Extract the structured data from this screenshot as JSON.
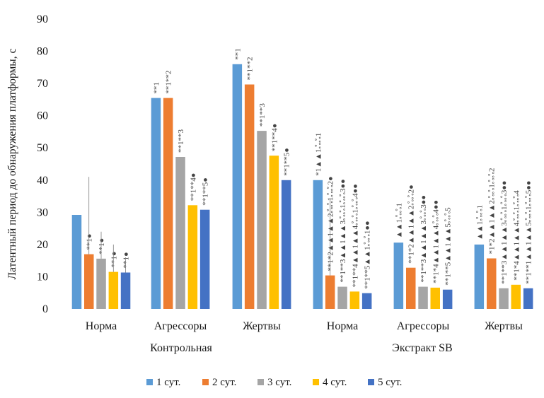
{
  "chart_data": {
    "type": "bar",
    "ylabel": "Латентный период до обнаружения платформы, с",
    "ylim": [
      0,
      90
    ],
    "yticks": [
      0,
      10,
      20,
      30,
      40,
      50,
      60,
      70,
      80,
      90
    ],
    "grid": false,
    "legend_position": "bottom",
    "groups": [
      "Контрольная",
      "Экстракт SB"
    ],
    "categories": [
      "Норма",
      "Агрессоры",
      "Жертвы",
      "Норма",
      "Агрессоры",
      "Жертвы"
    ],
    "category_group": [
      0,
      0,
      0,
      1,
      1,
      1
    ],
    "series": [
      {
        "name": "1 сут.",
        "color": "#5b9bd5",
        "values": [
          29.2,
          65.5,
          76.0,
          40.0,
          20.6,
          20.0
        ]
      },
      {
        "name": "2 сут.",
        "color": "#ed7d31",
        "values": [
          17.0,
          65.5,
          69.7,
          10.4,
          12.8,
          15.7
        ]
      },
      {
        "name": "3 сут.",
        "color": "#a5a5a5",
        "values": [
          15.6,
          47.2,
          55.3,
          6.9,
          6.9,
          6.4
        ]
      },
      {
        "name": "4 сут.",
        "color": "#ffc000",
        "values": [
          11.5,
          32.2,
          47.6,
          5.4,
          6.6,
          7.5
        ]
      },
      {
        "name": "5 сут.",
        "color": "#4472c4",
        "values": [
          11.3,
          30.8,
          40.0,
          4.9,
          6.0,
          6.4
        ]
      }
    ],
    "annotations": [
      [
        null,
        "**1●",
        "**1●",
        "**1●",
        "**1●"
      ],
      [
        "**1",
        "**1**2",
        "**1**3",
        "**1**4●",
        "**1**5●"
      ],
      [
        "**1",
        "**1**2",
        "**1**3",
        "**1**4●",
        "**1**5●"
      ],
      [
        "*1▲▲1ஃஃ1",
        "**1*2▲▲1▲▲2ஃஃ1ஃஃ2●",
        "**1**3▲▲1▲▲3ஃஃ1ஃஃ3●●",
        "**1**4▲▲1▲▲4ஃஃ1ஃஃ4●●",
        "**1**5▲▲1ஃஃ1●●"
      ],
      [
        "▲▲1ஃஃ1",
        "**1*2▲▲1▲▲2ஃஃ2●",
        "**1**3▲▲1▲▲3ஃஃ3●●",
        "**1*4▲▲1▲▲4ஃஃ4●●",
        "**1**5▲▲1▲▲5ஃஃ5"
      ],
      [
        "▲▲1ஃஃ1",
        "*1*2▲▲1▲▲2ஃஃ1ஃஃ2",
        "**1**3▲▲1▲▲3ஃஃ1ஃஃ3●●",
        "**1*4▲▲1▲▲4ஃஃ1ஃஃ4",
        "**1**1▲▲1▲▲5ஃஃ1ஃஃ5●●"
      ]
    ]
  }
}
